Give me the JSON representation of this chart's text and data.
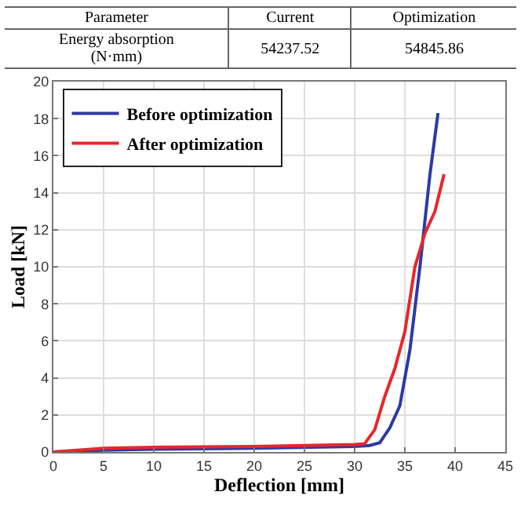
{
  "chart_data": {
    "type": "line",
    "xlabel": "Deflection [mm]",
    "ylabel": "Load [kN]",
    "annotations": [
      "Parameter",
      "Current",
      "Optimization",
      "Energy absorption\n(N·mm)",
      "54237.52",
      "54845.86"
    ],
    "series": [
      {
        "name": "Before optimization",
        "color": "#2b3aa6",
        "x": [
          0,
          5,
          10,
          20,
          30,
          31.5,
          32.5,
          33.5,
          34.5,
          35.5,
          36.5,
          37.5,
          38.3
        ],
        "values": [
          0,
          0.1,
          0.15,
          0.2,
          0.3,
          0.35,
          0.5,
          1.3,
          2.5,
          5.5,
          10,
          15,
          18.3
        ]
      },
      {
        "name": "After optimization",
        "color": "#e8262a",
        "x": [
          0,
          5,
          10,
          20,
          30,
          31,
          32,
          33,
          34,
          35,
          36,
          37,
          38,
          38.9
        ],
        "values": [
          0,
          0.2,
          0.25,
          0.3,
          0.4,
          0.45,
          1.2,
          3,
          4.5,
          6.5,
          10,
          11.8,
          13,
          15
        ]
      }
    ],
    "xlim": [
      0,
      45
    ],
    "xticks": [
      0,
      5,
      10,
      15,
      20,
      25,
      30,
      35,
      40,
      45
    ],
    "ylim": [
      0,
      20
    ],
    "yticks": [
      0,
      2,
      4,
      6,
      8,
      10,
      12,
      14,
      16,
      18,
      20
    ],
    "grid": true,
    "legend": "top left",
    "line_style": "solid",
    "marker": "none"
  }
}
